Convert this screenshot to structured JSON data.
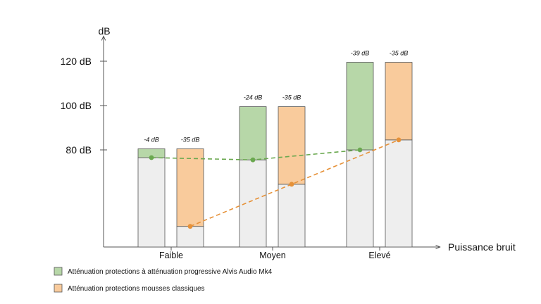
{
  "chart_data": {
    "type": "bar",
    "yunit": "dB",
    "xlabel": "Puissance bruit",
    "ylim": [
      58,
      126
    ],
    "y_ticks": [
      80,
      100,
      120
    ],
    "y_tick_labels": [
      "80 dB",
      "100 dB",
      "120 dB"
    ],
    "categories": [
      "Faible",
      "Moyen",
      "Elevé"
    ],
    "series": [
      {
        "name": "Atténuation protections à atténuation progressive Alvis Audio Mk4",
        "color": "#b7d7a8",
        "stroke": "#555555",
        "noise_db": [
          80.5,
          99.5,
          119.5
        ],
        "residual_db": [
          76.5,
          75.5,
          80.0
        ],
        "attenuation_labels": [
          "-4 dB",
          "-24 dB",
          "-39 dB"
        ]
      },
      {
        "name": "Atténuation protections mousses classiques",
        "color": "#f9cb9c",
        "stroke": "#555555",
        "noise_db": [
          80.5,
          99.5,
          119.5
        ],
        "residual_db": [
          45.5,
          64.5,
          84.5
        ],
        "attenuation_labels": [
          "-35 dB",
          "-35 dB",
          "-35 dB"
        ]
      }
    ],
    "residual_fill": "#eeeeee",
    "line_colors": [
      "#6aa84f",
      "#e69138"
    ],
    "grid": false,
    "legend_position": "bottom-left"
  }
}
